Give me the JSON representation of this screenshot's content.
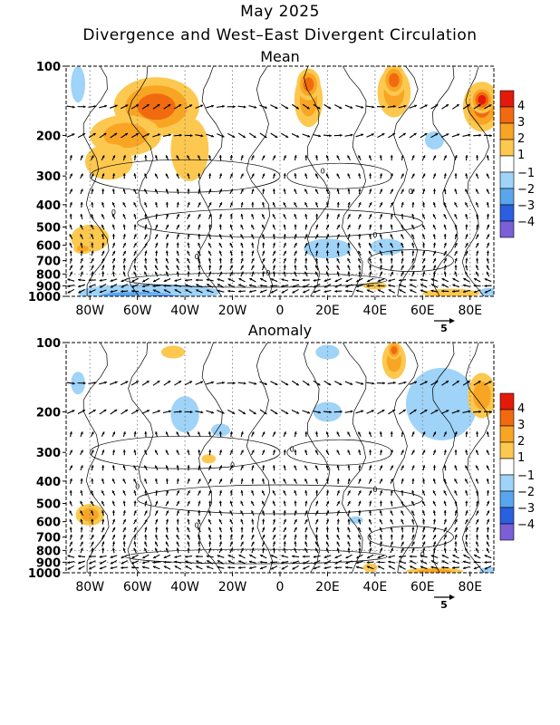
{
  "title": "May 2025",
  "subtitle": "Divergence and West–East Divergent Circulation",
  "colorbar": {
    "levels": [
      "4",
      "3",
      "2",
      "1",
      "−1",
      "−2",
      "−3",
      "−4"
    ],
    "colors": [
      "#e31a0a",
      "#f26a10",
      "#f8a523",
      "#fcc84f",
      "#ffffff",
      "#9fd3f7",
      "#5aa6ee",
      "#2a5fe0",
      "#7b5fd6"
    ]
  },
  "chart_data": [
    {
      "type": "heatmap",
      "title": "Mean",
      "x_ticks": [
        "80W",
        "60W",
        "40W",
        "20W",
        "0",
        "20E",
        "40E",
        "60E",
        "80E"
      ],
      "x_values": [
        -80,
        -60,
        -40,
        -20,
        0,
        20,
        40,
        60,
        80
      ],
      "xlim": [
        -90,
        90
      ],
      "y_ticks": [
        "100",
        "200",
        "300",
        "400",
        "500",
        "600",
        "700",
        "800",
        "900",
        "1000"
      ],
      "y_values": [
        100,
        200,
        300,
        400,
        500,
        600,
        700,
        800,
        900,
        1000
      ],
      "ylim": [
        1000,
        100
      ],
      "y_scale": "log",
      "contour_labels": [
        "0",
        "0",
        "0",
        "0",
        "0",
        "0"
      ],
      "vector_reference": "5",
      "grid": "dotted"
    },
    {
      "type": "heatmap",
      "title": "Anomaly",
      "x_ticks": [
        "80W",
        "60W",
        "40W",
        "20W",
        "0",
        "20E",
        "40E",
        "60E",
        "80E"
      ],
      "x_values": [
        -80,
        -60,
        -40,
        -20,
        0,
        20,
        40,
        60,
        80
      ],
      "xlim": [
        -90,
        90
      ],
      "y_ticks": [
        "100",
        "200",
        "300",
        "400",
        "500",
        "600",
        "700",
        "800",
        "900",
        "1000"
      ],
      "y_values": [
        100,
        200,
        300,
        400,
        500,
        600,
        700,
        800,
        900,
        1000
      ],
      "ylim": [
        1000,
        100
      ],
      "y_scale": "log",
      "contour_labels": [
        "0",
        "0",
        "0",
        "0",
        "0",
        "0"
      ],
      "vector_reference": "5",
      "grid": "dotted"
    }
  ]
}
